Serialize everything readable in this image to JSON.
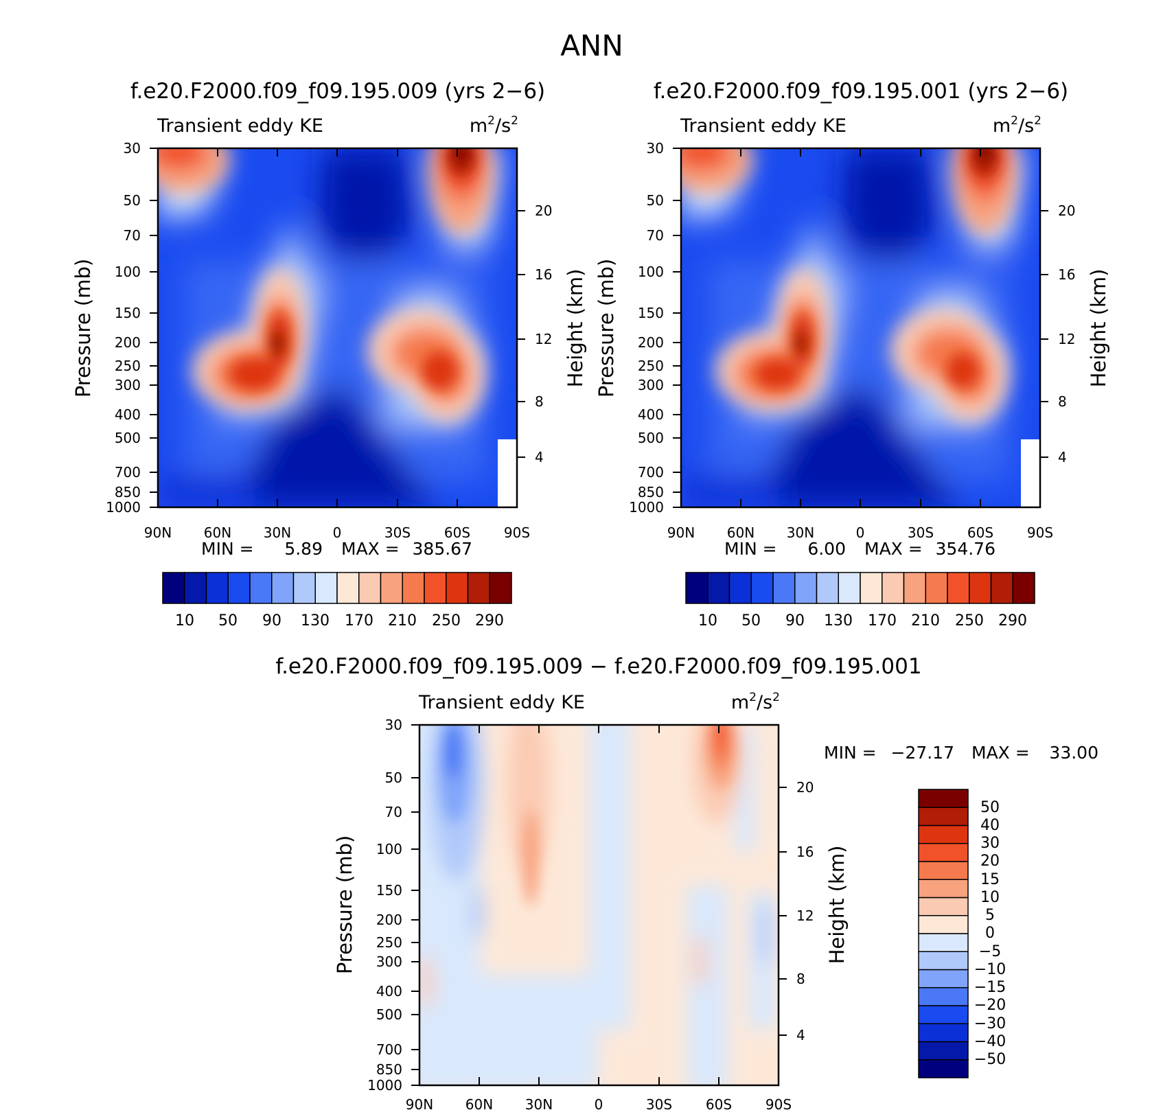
{
  "page_title": "ANN",
  "colors": {
    "sequential": [
      "#00007f",
      "#0418aa",
      "#0b30d8",
      "#1a4bf0",
      "#4a78f6",
      "#80a4f9",
      "#b0c9fb",
      "#d9e8fc",
      "#fde8d8",
      "#fbcab2",
      "#f8a27e",
      "#f57a4d",
      "#f2522a",
      "#dd3510",
      "#b11d06",
      "#7a0000"
    ],
    "difference": [
      "#00007f",
      "#0418aa",
      "#0b30d8",
      "#1a4bf0",
      "#4a78f6",
      "#80a4f9",
      "#b0c9fb",
      "#d9e8fc",
      "#fde8d8",
      "#fbcab2",
      "#f8a27e",
      "#f57a4d",
      "#f2522a",
      "#dd3510",
      "#b11d06",
      "#7a0000"
    ]
  },
  "panels": [
    {
      "title": "f.e20.F2000.f09_f09.195.009 (yrs 2−6)",
      "left_label": "Transient eddy KE",
      "units_base": "m",
      "units_mid": "/s",
      "units_sup": "2",
      "stats": {
        "min_label": "MIN =",
        "min_value": "5.89",
        "max_label": "MAX =",
        "max_value": "385.67"
      }
    },
    {
      "title": "f.e20.F2000.f09_f09.195.001 (yrs 2−6)",
      "left_label": "Transient eddy KE",
      "units_base": "m",
      "units_mid": "/s",
      "units_sup": "2",
      "stats": {
        "min_label": "MIN =",
        "min_value": "6.00",
        "max_label": "MAX =",
        "max_value": "354.76"
      }
    },
    {
      "title": "f.e20.F2000.f09_f09.195.009 − f.e20.F2000.f09_f09.195.001",
      "left_label": "Transient eddy KE",
      "units_base": "m",
      "units_mid": "/s",
      "units_sup": "2",
      "stats": {
        "min_label": "MIN =",
        "min_value": "−27.17",
        "max_label": "MAX =",
        "max_value": "33.00"
      }
    }
  ],
  "chart_data": [
    {
      "type": "heatmap",
      "title": "f.e20.F2000.f09_f09.195.009 (yrs 2−6)",
      "ylabel": "Pressure (mb)",
      "y2label": "Height (km)",
      "x_ticks": [
        "90N",
        "60N",
        "30N",
        "0",
        "30S",
        "60S",
        "90S"
      ],
      "y_ticks": [
        "30",
        "50",
        "70",
        "100",
        "150",
        "200",
        "250",
        "300",
        "400",
        "500",
        "700",
        "850",
        "1000"
      ],
      "y2_ticks": [
        "20",
        "16",
        "12",
        "8",
        "4"
      ],
      "colorbar_levels": [
        "10",
        "50",
        "90",
        "130",
        "170",
        "210",
        "250",
        "290"
      ],
      "features": [
        {
          "lat": 30,
          "p": 200,
          "peak": 300
        },
        {
          "lat": 45,
          "p": 260,
          "peak": 240
        },
        {
          "lat": -45,
          "p": 220,
          "peak": 230
        },
        {
          "lat": -55,
          "p": 290,
          "peak": 295
        },
        {
          "lat": -62,
          "p": 30,
          "peak": 385.67
        },
        {
          "lat": 80,
          "p": 30,
          "peak": 240
        }
      ],
      "min": 5.89,
      "max": 385.67
    },
    {
      "type": "heatmap",
      "title": "f.e20.F2000.f09_f09.195.001 (yrs 2−6)",
      "ylabel": "Pressure (mb)",
      "y2label": "Height (km)",
      "x_ticks": [
        "90N",
        "60N",
        "30N",
        "0",
        "30S",
        "60S",
        "90S"
      ],
      "y_ticks": [
        "30",
        "50",
        "70",
        "100",
        "150",
        "200",
        "250",
        "300",
        "400",
        "500",
        "700",
        "850",
        "1000"
      ],
      "y2_ticks": [
        "20",
        "16",
        "12",
        "8",
        "4"
      ],
      "colorbar_levels": [
        "10",
        "50",
        "90",
        "130",
        "170",
        "210",
        "250",
        "290"
      ],
      "features": [
        {
          "lat": 30,
          "p": 200,
          "peak": 280
        },
        {
          "lat": 45,
          "p": 260,
          "peak": 235
        },
        {
          "lat": -45,
          "p": 220,
          "peak": 225
        },
        {
          "lat": -55,
          "p": 290,
          "peak": 285
        },
        {
          "lat": -62,
          "p": 30,
          "peak": 354.76
        },
        {
          "lat": 80,
          "p": 30,
          "peak": 250
        }
      ],
      "min": 6.0,
      "max": 354.76
    },
    {
      "type": "heatmap",
      "title": "f.e20.F2000.f09_f09.195.009 − f.e20.F2000.f09_f09.195.001",
      "ylabel": "Pressure (mb)",
      "y2label": "Height (km)",
      "x_ticks": [
        "90N",
        "60N",
        "30N",
        "0",
        "30S",
        "60S",
        "90S"
      ],
      "y_ticks": [
        "30",
        "50",
        "70",
        "100",
        "150",
        "200",
        "250",
        "300",
        "400",
        "500",
        "700",
        "850",
        "1000"
      ],
      "y2_ticks": [
        "20",
        "16",
        "12",
        "8",
        "4"
      ],
      "colorbar_levels": [
        "50",
        "40",
        "30",
        "20",
        "15",
        "10",
        "5",
        "0",
        "−5",
        "−10",
        "−15",
        "−20",
        "−30",
        "−40",
        "−50"
      ],
      "min": -27.17,
      "max": 33.0
    }
  ]
}
